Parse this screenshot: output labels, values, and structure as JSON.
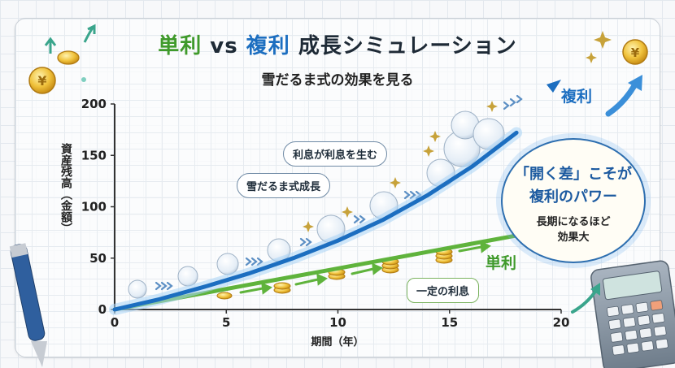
{
  "title": {
    "part1": "単利",
    "vs": "vs",
    "part2": "複利",
    "rest": "成長シミュレーション"
  },
  "subtitle": "雪だるま式の効果を見る",
  "callout": {
    "line1": "「開く差」こそが",
    "line2": "複利のパワー",
    "line3": "長期になるほど",
    "line4": "効果大"
  },
  "bubbles": {
    "interest_on_interest": "利息が利息を生む",
    "snowball": "雪だるま式成長",
    "fixed_interest": "一定の利息"
  },
  "colors": {
    "compound": "#1c6ec0",
    "simple": "#5fb33c",
    "title_simple": "#3f9a2b"
  },
  "chart_data": {
    "type": "line",
    "xlabel": "期間（年）",
    "ylabel": "資産残高（金額）",
    "xlim": [
      0,
      20
    ],
    "ylim": [
      0,
      200
    ],
    "x_ticks": [
      0,
      5,
      10,
      15,
      20
    ],
    "y_ticks": [
      0,
      50,
      100,
      150,
      200
    ],
    "grid": true,
    "series": [
      {
        "name": "複利",
        "x": [
          0,
          2,
          4,
          6,
          8,
          10,
          12,
          14,
          16,
          18
        ],
        "y": [
          0,
          10,
          22,
          35,
          50,
          67,
          87,
          111,
          139,
          172
        ]
      },
      {
        "name": "単利",
        "x": [
          0,
          2,
          4,
          6,
          8,
          10,
          12,
          14,
          16,
          18
        ],
        "y": [
          0,
          8,
          16,
          24,
          32,
          40,
          48,
          56,
          64,
          72
        ]
      }
    ]
  }
}
